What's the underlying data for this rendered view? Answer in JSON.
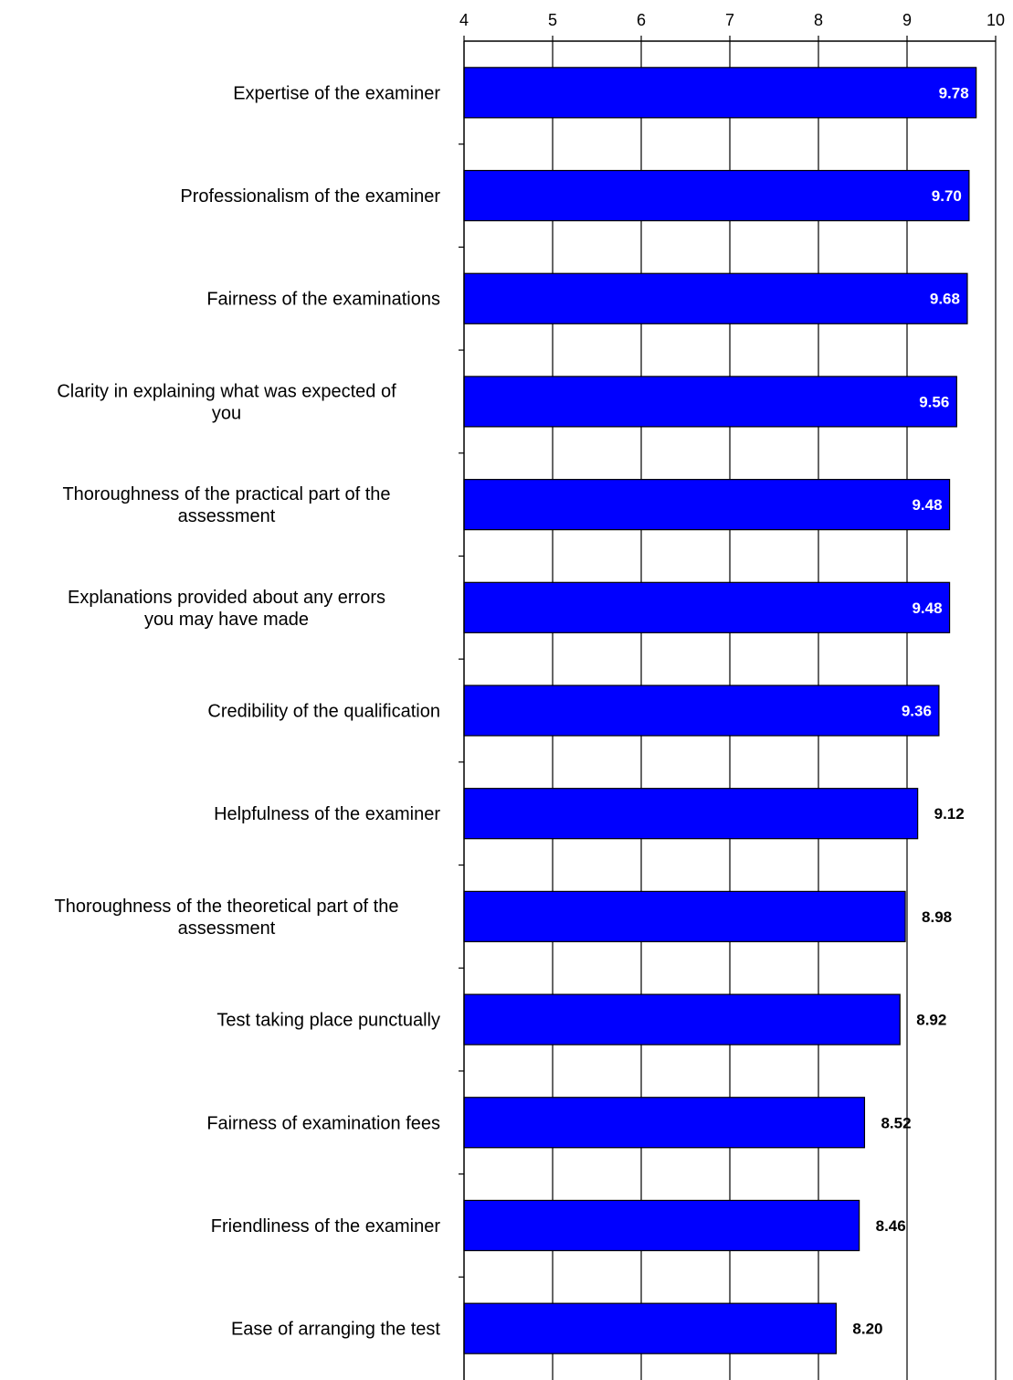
{
  "chart_data": {
    "type": "bar",
    "orientation": "horizontal",
    "xlim": [
      4,
      10
    ],
    "ticks": [
      4,
      5,
      6,
      7,
      8,
      9,
      10
    ],
    "grid": true,
    "bar_color": "#0000FF",
    "categories": [
      "Expertise of the examiner",
      "Professionalism of the examiner",
      "Fairness of the examinations",
      "Clarity in explaining what was expected of you",
      "Thoroughness of the practical part of the assessment",
      "Explanations provided about any errors you may have made",
      "Credibility of the qualification",
      "Helpfulness of the examiner",
      "Thoroughness of the theoretical part of the assessment",
      "Test taking place punctually",
      "Fairness of examination fees",
      "Friendliness of the examiner",
      "Ease of arranging the test"
    ],
    "category_lines": [
      [
        "Expertise of the examiner"
      ],
      [
        "Professionalism of the examiner"
      ],
      [
        "Fairness of the examinations"
      ],
      [
        "Clarity in explaining what was expected of",
        "you"
      ],
      [
        "Thoroughness of the practical part of the",
        "assessment"
      ],
      [
        "Explanations provided about any errors",
        "you may have made"
      ],
      [
        "Credibility of the qualification"
      ],
      [
        "Helpfulness of the examiner"
      ],
      [
        "Thoroughness of the theoretical part of the",
        "assessment"
      ],
      [
        "Test taking place punctually"
      ],
      [
        "Fairness of examination fees"
      ],
      [
        "Friendliness of the examiner"
      ],
      [
        "Ease of arranging the test"
      ]
    ],
    "values": [
      9.78,
      9.7,
      9.68,
      9.56,
      9.48,
      9.48,
      9.36,
      9.12,
      8.98,
      8.92,
      8.52,
      8.46,
      8.2
    ],
    "value_labels": [
      "9.78",
      "9.70",
      "9.68",
      "9.56",
      "9.48",
      "9.48",
      "9.36",
      "9.12",
      "8.98",
      "8.92",
      "8.52",
      "8.46",
      "8.20"
    ]
  }
}
